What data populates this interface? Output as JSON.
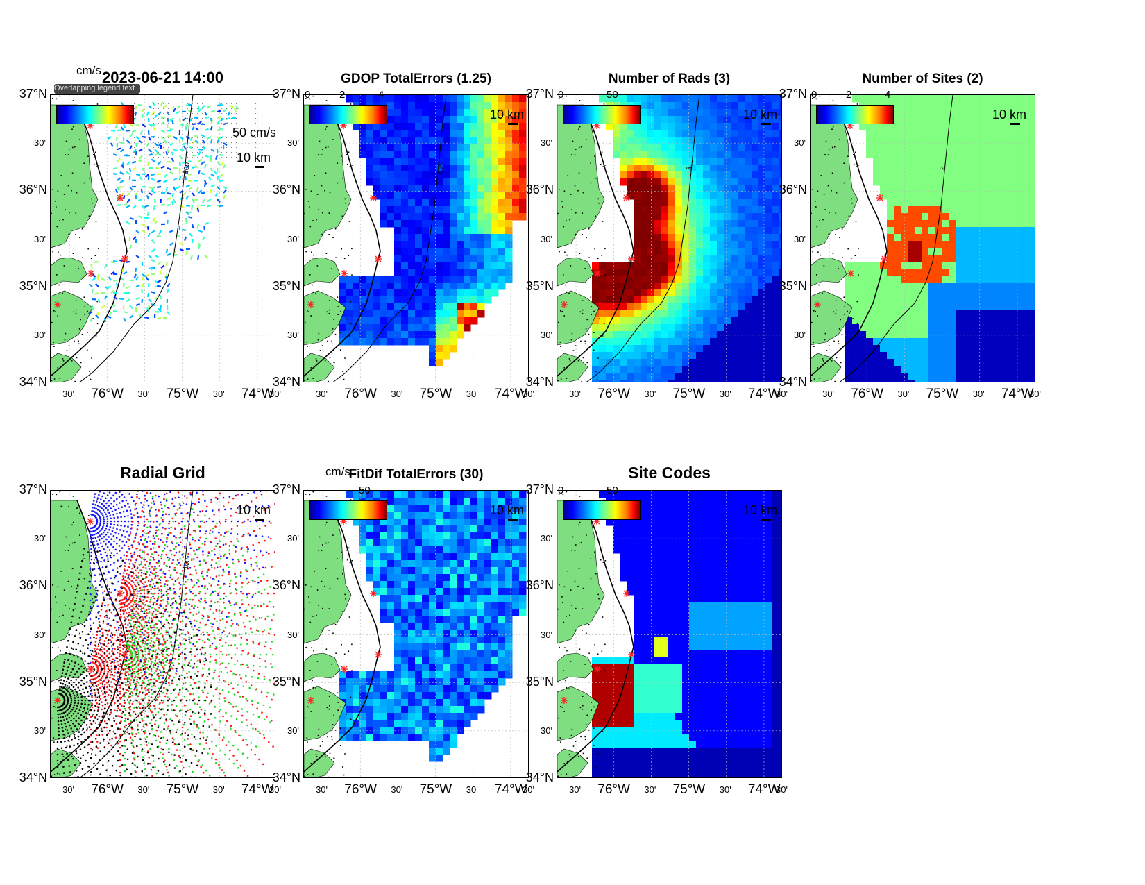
{
  "colors": {
    "land": "#7fde7f",
    "ocean_bg": "#ffffff",
    "site_marker": "#ff2020",
    "grid_blue": "#1818ff",
    "grid_red": "#ff1818",
    "grid_green": "#22dd22",
    "grid_black": "#000000"
  },
  "axes": {
    "lat_major": [
      "37°N",
      "36°N",
      "35°N",
      "34°N"
    ],
    "lat_minor": "30'",
    "lon_major": [
      "76°W",
      "75°W",
      "74°W"
    ],
    "lon_minor": "30'"
  },
  "scale_label": "10 km",
  "panels": [
    {
      "id": "totals",
      "title": "2023-06-21 14:00",
      "overprint": "Overlapping legend text",
      "cbar_unit": "cm/s",
      "cbar_ticks": [],
      "vector_scale_label": "50 cm/s",
      "contour_label": "100"
    },
    {
      "id": "gdop",
      "title": "GDOP TotalErrors (1.25)",
      "cbar_ticks": [
        "0",
        "2",
        "4"
      ],
      "contour_label": "1.25"
    },
    {
      "id": "nrads",
      "title": "Number of Rads (3)",
      "cbar_ticks": [
        "0",
        "50"
      ],
      "contour_label": "3"
    },
    {
      "id": "nsites",
      "title": "Number of Sites (2)",
      "cbar_ticks": [
        "0",
        "2",
        "4"
      ],
      "contour_label": "2"
    },
    {
      "id": "radgrid",
      "title": "Radial Grid",
      "contour_label": "100"
    },
    {
      "id": "fitdif",
      "title": "FitDif TotalErrors (30)",
      "cbar_unit": "cm/s",
      "cbar_ticks": [
        "50"
      ]
    },
    {
      "id": "sitecodes",
      "title": "Site Codes",
      "cbar_ticks": [
        "0",
        "50"
      ]
    }
  ]
}
